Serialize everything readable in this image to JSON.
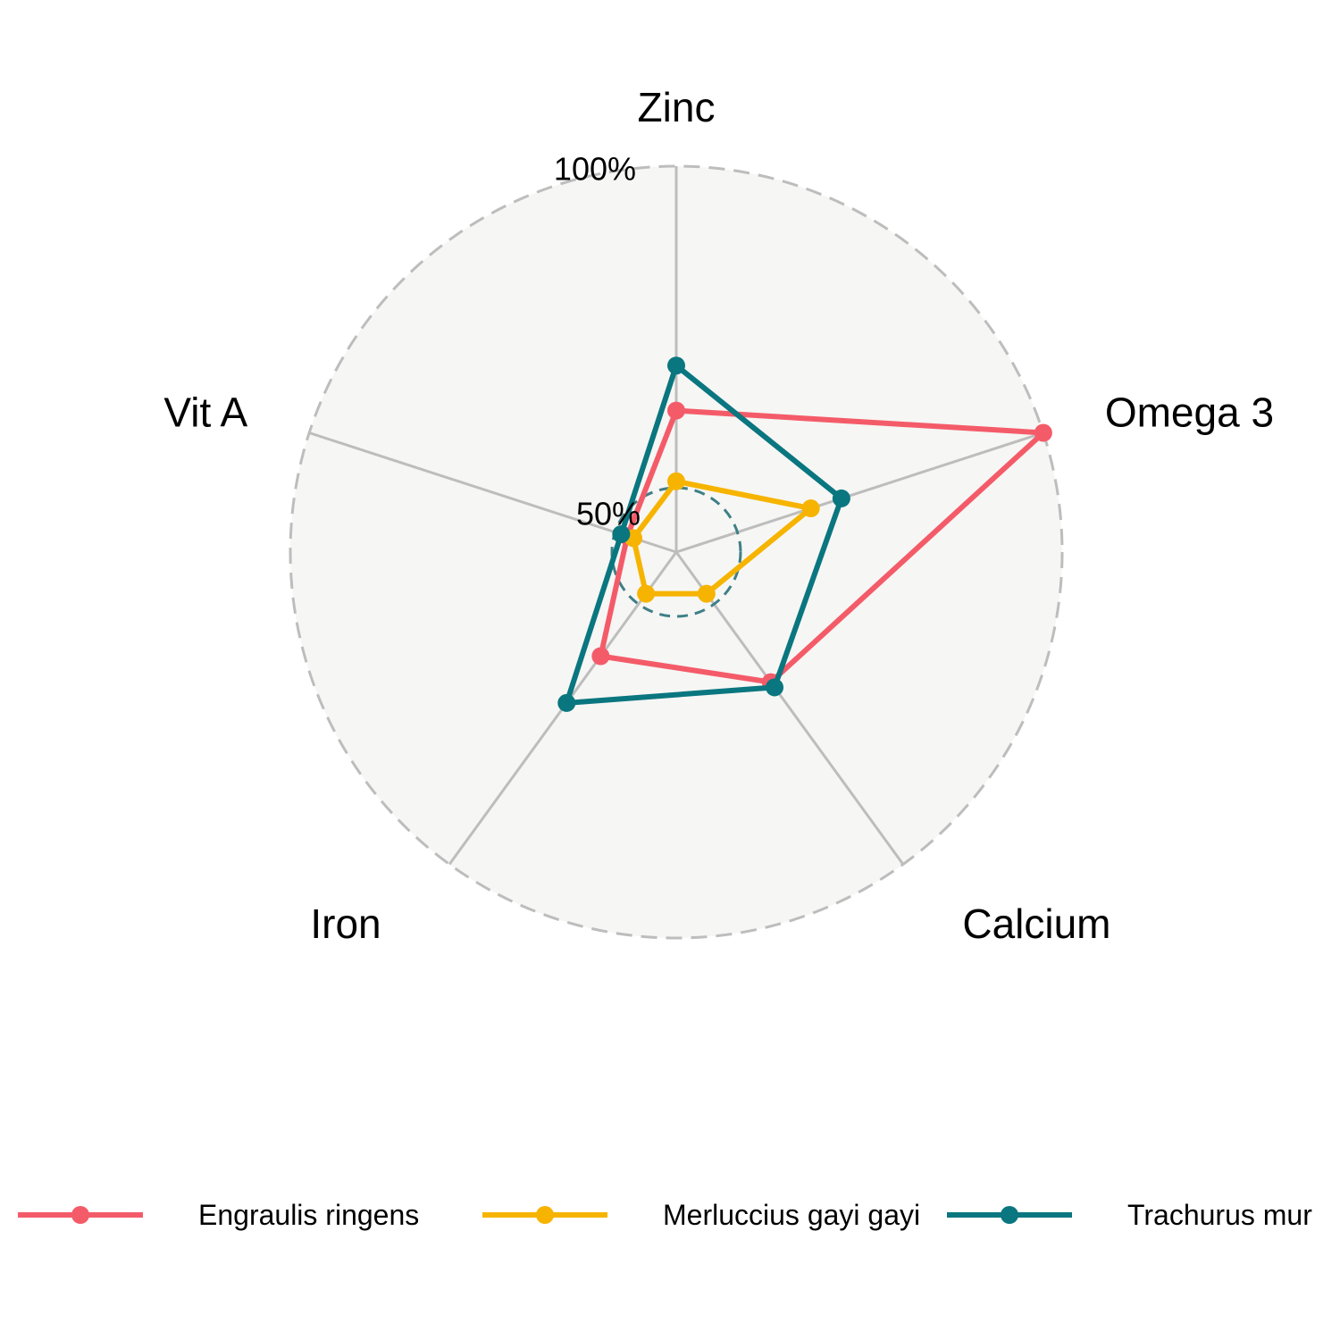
{
  "chart_data": {
    "type": "radar",
    "title": "",
    "axes": [
      "Zinc",
      "Omega 3",
      "Calcium",
      "Iron",
      "Vit A"
    ],
    "ring_labels": [
      {
        "value": 50,
        "label": "50%"
      },
      {
        "value": 100,
        "label": "100%"
      }
    ],
    "range": [
      40,
      100
    ],
    "legend_position": "bottom",
    "series": [
      {
        "name": "Engraulis ringens",
        "color": "#F45B69",
        "values": [
          62,
          100,
          65,
          60,
          48
        ]
      },
      {
        "name": "Merluccius gayi gayi",
        "color": "#F6B400",
        "values": [
          51,
          62,
          48,
          48,
          47
        ]
      },
      {
        "name": "Trachurus mur",
        "color": "#0A767F",
        "values": [
          69,
          67,
          66,
          69,
          49
        ]
      }
    ]
  }
}
